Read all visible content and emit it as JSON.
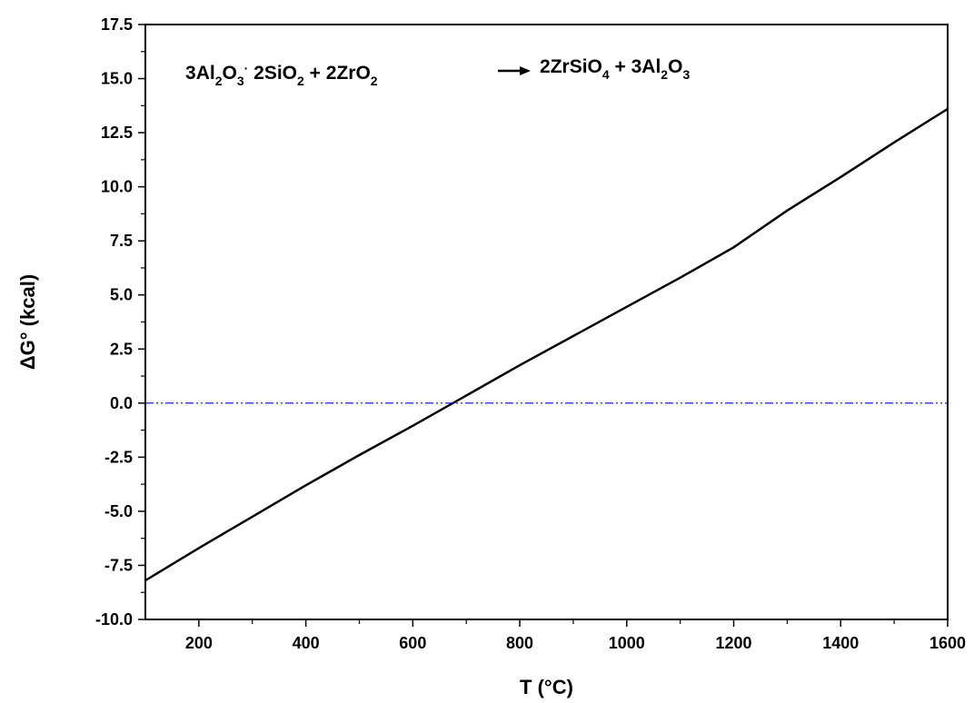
{
  "chart_data": {
    "type": "line",
    "title": "",
    "xlabel": "T (°C)",
    "ylabel": "ΔG° (kcal)",
    "xlim": [
      100,
      1600
    ],
    "ylim": [
      -10.0,
      17.5
    ],
    "x_ticks": [
      200,
      400,
      600,
      800,
      1000,
      1200,
      1400,
      1600
    ],
    "x_tick_labels": [
      "200",
      "400",
      "600",
      "800",
      "1000",
      "1200",
      "1400",
      "1600"
    ],
    "y_ticks": [
      -10.0,
      -7.5,
      -5.0,
      -2.5,
      0.0,
      2.5,
      5.0,
      7.5,
      10.0,
      12.5,
      15.0,
      17.5
    ],
    "y_tick_labels": [
      "-10.0",
      "-7.5",
      "-5.0",
      "-2.5",
      "0.0",
      "2.5",
      "5.0",
      "7.5",
      "10.0",
      "12.5",
      "15.0",
      "17.5"
    ],
    "grid": false,
    "legend": "none",
    "series": [
      {
        "color": "#000000",
        "style": "solid",
        "x": [
          100,
          200,
          300,
          400,
          500,
          600,
          700,
          800,
          900,
          1000,
          1100,
          1200,
          1300,
          1400,
          1500,
          1600
        ],
        "y": [
          -8.2,
          -6.7,
          -5.25,
          -3.8,
          -2.4,
          -1.05,
          0.35,
          1.75,
          3.1,
          4.45,
          5.8,
          7.2,
          8.9,
          10.45,
          12.05,
          13.6
        ]
      },
      {
        "color": "#0000ff",
        "style": "dash-dot-dot",
        "x": [
          100,
          1600
        ],
        "y": [
          0.0,
          0.0
        ]
      }
    ],
    "annotation": {
      "reactant_1": {
        "coef": "3",
        "parts": [
          [
            "Al",
            ""
          ],
          [
            "",
            "2"
          ],
          [
            "O",
            ""
          ],
          [
            "",
            "3"
          ]
        ]
      },
      "dot": "·",
      "reactant_2": {
        "coef": "2",
        "parts": [
          [
            "SiO",
            ""
          ],
          [
            "",
            "2"
          ]
        ]
      },
      "plus_1": "+",
      "reactant_3": {
        "coef": "2",
        "parts": [
          [
            "ZrO",
            ""
          ],
          [
            "",
            "2"
          ]
        ]
      },
      "product_1": {
        "coef": "2",
        "parts": [
          [
            "ZrSiO",
            ""
          ],
          [
            "",
            "4"
          ]
        ]
      },
      "plus_2": "+",
      "product_2": {
        "coef": "3",
        "parts": [
          [
            "Al",
            ""
          ],
          [
            "",
            "2"
          ],
          [
            "O",
            ""
          ],
          [
            "",
            "3"
          ]
        ]
      }
    }
  }
}
